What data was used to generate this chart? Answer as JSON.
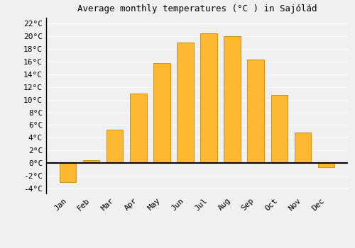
{
  "months": [
    "Jan",
    "Feb",
    "Mar",
    "Apr",
    "May",
    "Jun",
    "Jul",
    "Aug",
    "Sep",
    "Oct",
    "Nov",
    "Dec"
  ],
  "values": [
    -3.0,
    0.5,
    5.3,
    11.0,
    15.8,
    19.0,
    20.5,
    20.0,
    16.3,
    10.7,
    4.8,
    -0.7
  ],
  "bar_color": "#FDB832",
  "bar_edge_color": "#C8880A",
  "title": "Average monthly temperatures (°C ) in Sajólád",
  "ylabel_ticks": [
    "-4°C",
    "-2°C",
    "0°C",
    "2°C",
    "4°C",
    "6°C",
    "8°C",
    "10°C",
    "12°C",
    "14°C",
    "16°C",
    "18°C",
    "20°C",
    "22°C"
  ],
  "ytick_values": [
    -4,
    -2,
    0,
    2,
    4,
    6,
    8,
    10,
    12,
    14,
    16,
    18,
    20,
    22
  ],
  "ylim": [
    -4.8,
    23.0
  ],
  "background_color": "#f0f0f0",
  "grid_color": "#ffffff",
  "title_fontsize": 9,
  "tick_fontsize": 8,
  "font_family": "monospace"
}
